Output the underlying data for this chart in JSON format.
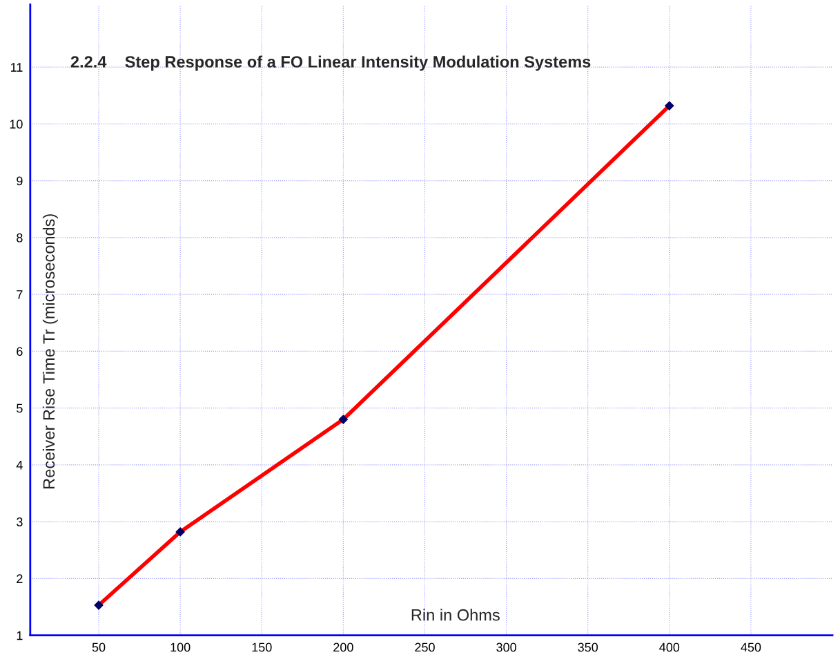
{
  "chart_data": {
    "type": "line",
    "title": "2.2.4    Step Response of a FO Linear Intensity Modulation Systems",
    "xlabel": "Rin in Ohms",
    "ylabel": "Receiver Rise Time Tr (microseconds)",
    "x": [
      50,
      100,
      200,
      400
    ],
    "series": [
      {
        "color": "#ff0000",
        "values": [
          1.53,
          2.82,
          4.8,
          10.32
        ]
      }
    ],
    "xlim": [
      8,
      500
    ],
    "xticks": [
      50,
      100,
      150,
      200,
      250,
      300,
      350,
      400,
      450
    ],
    "ylim": [
      1,
      12.1
    ],
    "yticks": [
      1,
      2,
      3,
      4,
      5,
      6,
      7,
      8,
      9,
      10,
      11
    ],
    "grid": true,
    "marker": "diamond",
    "line_style": "solid"
  }
}
